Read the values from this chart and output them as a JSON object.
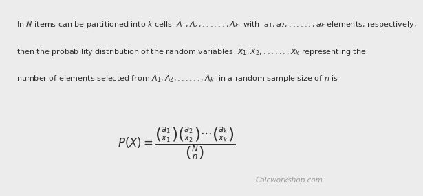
{
  "background_color": "#ececec",
  "text_color": "#2d2d2d",
  "watermark": "Calcworkshop.com",
  "watermark_color": "#999999",
  "watermark_fontsize": 7.5,
  "line1": "In $N$ items can be partitioned into $k$ cells  $A_1, A_2,......,A_k$  with  $a_1, a_2,......,a_k$ elements, respectively,",
  "line2": "then the probability distribution of the random variables  $X_1, X_2,......,X_k$ representing the",
  "line3": "number of elements selected from $A_1, A_2,......,A_k$  in a random sample size of $n$ is",
  "formula": "$P\\left(X\\right)=\\dfrac{\\binom{a_1}{x_1}\\binom{a_2}{x_2}\\cdots\\binom{a_k}{x_k}}{\\binom{N}{n}}$",
  "text_fontsize": 8.0,
  "formula_fontsize": 12
}
